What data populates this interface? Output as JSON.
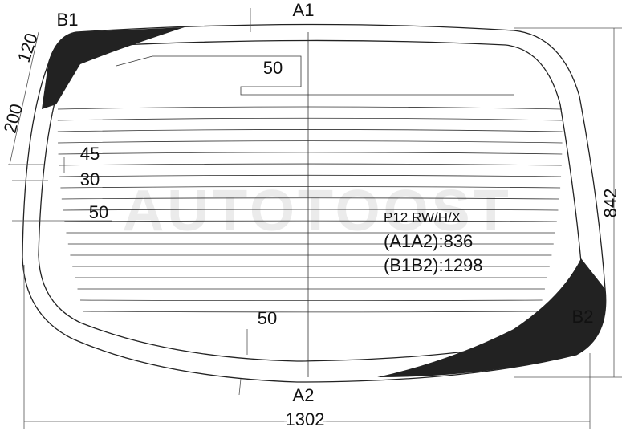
{
  "labels": {
    "a1": "A1",
    "a2": "A2",
    "b1": "B1",
    "b2": "B2"
  },
  "dimensions": {
    "top_offset": "120",
    "side_offset": "200",
    "heater_top": "45",
    "heater_gap": "30",
    "heater_side": "50",
    "top_band": "50",
    "bottom_band": "50",
    "height": "842",
    "width": "1302"
  },
  "info": {
    "code": "P12 RW/H/X",
    "a1a2": "(A1A2):836",
    "b1b2": "(B1B2):1298"
  },
  "watermark": "AUTOTOOST"
}
